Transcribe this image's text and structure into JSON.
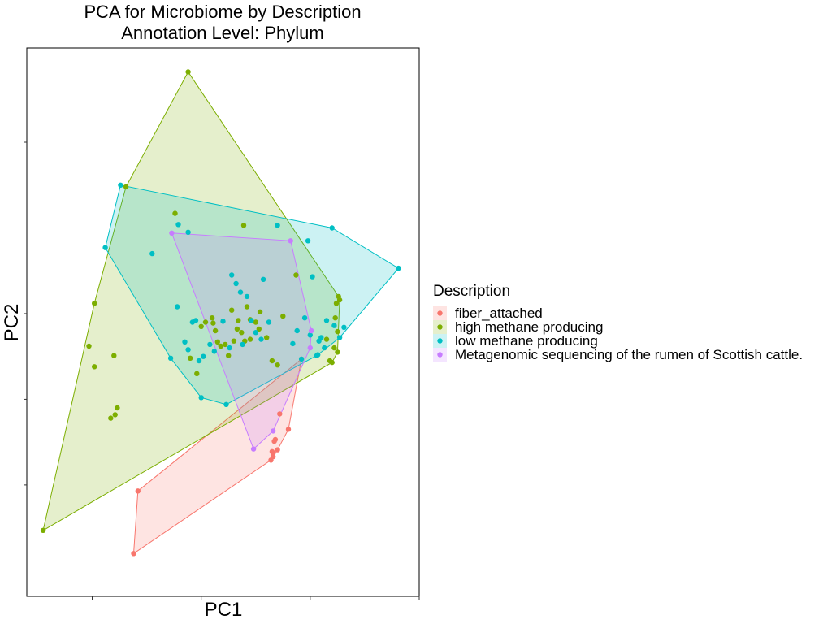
{
  "chart_data": {
    "type": "scatter",
    "title": "PCA for Microbiome by Description",
    "subtitle": "Annotation Level: Phylum",
    "xlabel": "PC1",
    "ylabel": "PC2",
    "xlim": [
      -0.1,
      3.5
    ],
    "ylim": [
      -3.3,
      3.1
    ],
    "grid": false,
    "legend": {
      "title": "Description",
      "position": "right"
    },
    "series": [
      {
        "name": "fiber_attached",
        "color": "#F8766D",
        "hull": true,
        "points": [
          [
            0.88,
            -2.8
          ],
          [
            0.92,
            -2.07
          ],
          [
            2.3,
            -1.35
          ],
          [
            2.42,
            -0.53
          ],
          [
            2.22,
            -1.17
          ],
          [
            2.18,
            -1.47
          ],
          [
            2.17,
            -1.49
          ],
          [
            2.2,
            -1.59
          ],
          [
            2.15,
            -1.61
          ],
          [
            2.16,
            -1.63
          ],
          [
            2.16,
            -1.67
          ],
          [
            2.14,
            -1.71
          ]
        ]
      },
      {
        "name": "high methane producing",
        "color": "#7CAE00",
        "hull": true,
        "points": [
          [
            0.05,
            -2.53
          ],
          [
            1.38,
            2.82
          ],
          [
            2.77,
            0.16
          ],
          [
            0.81,
            1.48
          ],
          [
            1.26,
            1.17
          ],
          [
            1.89,
            1.03
          ],
          [
            2.25,
            -0.03
          ],
          [
            0.7,
            -0.49
          ],
          [
            0.73,
            -1.1
          ],
          [
            0.71,
            -1.18
          ],
          [
            0.67,
            -1.22
          ],
          [
            0.52,
            -0.62
          ],
          [
            0.52,
            0.12
          ],
          [
            0.47,
            -0.38
          ],
          [
            1.54,
            -0.1
          ],
          [
            1.6,
            -0.05
          ],
          [
            1.61,
            -0.11
          ],
          [
            1.63,
            -0.2
          ],
          [
            1.65,
            -0.33
          ],
          [
            1.68,
            -0.38
          ],
          [
            1.72,
            -0.36
          ],
          [
            1.75,
            -0.49
          ],
          [
            1.8,
            -0.32
          ],
          [
            1.83,
            -0.18
          ],
          [
            1.87,
            -0.22
          ],
          [
            1.9,
            -0.32
          ],
          [
            1.92,
            0.08
          ],
          [
            1.95,
            -0.07
          ],
          [
            2.0,
            -0.1
          ],
          [
            2.03,
            -0.18
          ],
          [
            2.1,
            -0.28
          ],
          [
            2.15,
            -0.55
          ],
          [
            2.2,
            -0.6
          ],
          [
            1.5,
            -0.15
          ],
          [
            1.4,
            -0.52
          ],
          [
            1.46,
            -0.7
          ],
          [
            2.37,
            0.45
          ],
          [
            2.65,
            -0.3
          ],
          [
            2.7,
            -0.57
          ],
          [
            2.72,
            -0.4
          ],
          [
            2.73,
            -0.05
          ],
          [
            2.74,
            0.12
          ],
          [
            2.75,
            -0.21
          ],
          [
            2.76,
            0.2
          ],
          [
            2.75,
            -0.45
          ],
          [
            2.68,
            -0.55
          ],
          [
            1.78,
            0.04
          ],
          [
            1.84,
            -0.08
          ],
          [
            1.95,
            -0.3
          ],
          [
            2.04,
            0.02
          ]
        ]
      },
      {
        "name": "low methane producing",
        "color": "#00BFC4",
        "hull": true,
        "points": [
          [
            0.76,
            1.5
          ],
          [
            0.62,
            0.77
          ],
          [
            1.5,
            -0.98
          ],
          [
            1.73,
            -1.06
          ],
          [
            2.42,
            -0.53
          ],
          [
            2.57,
            -0.48
          ],
          [
            3.31,
            0.53
          ],
          [
            2.77,
            -0.28
          ],
          [
            2.7,
            1.0
          ],
          [
            2.2,
            1.03
          ],
          [
            1.29,
            1.04
          ],
          [
            1.38,
            0.95
          ],
          [
            1.05,
            0.7
          ],
          [
            1.28,
            0.08
          ],
          [
            1.42,
            -0.1
          ],
          [
            1.22,
            -0.52
          ],
          [
            1.35,
            -0.33
          ],
          [
            1.38,
            -0.42
          ],
          [
            1.45,
            -0.08
          ],
          [
            1.48,
            -0.55
          ],
          [
            1.62,
            -0.44
          ],
          [
            1.78,
            0.45
          ],
          [
            1.82,
            0.35
          ],
          [
            1.86,
            0.25
          ],
          [
            1.92,
            0.2
          ],
          [
            2.07,
            0.4
          ],
          [
            2.0,
            -0.22
          ],
          [
            2.05,
            -0.3
          ],
          [
            2.38,
            -0.2
          ],
          [
            2.45,
            -0.05
          ],
          [
            2.5,
            -0.25
          ],
          [
            2.58,
            -0.32
          ],
          [
            2.6,
            -0.28
          ],
          [
            2.65,
            -0.08
          ],
          [
            2.72,
            -0.14
          ],
          [
            2.48,
            0.85
          ],
          [
            2.52,
            0.43
          ],
          [
            1.52,
            -0.5
          ],
          [
            1.58,
            -0.36
          ],
          [
            1.7,
            -0.09
          ],
          [
            1.76,
            -0.4
          ],
          [
            1.88,
            -0.36
          ],
          [
            1.96,
            -0.08
          ],
          [
            2.12,
            -0.1
          ],
          [
            2.34,
            -0.35
          ],
          [
            2.56,
            -0.49
          ],
          [
            2.63,
            -0.4
          ],
          [
            2.81,
            -0.16
          ]
        ]
      },
      {
        "name": "Metagenomic sequencing of the rumen of Scottish cattle.",
        "color": "#C77CFF",
        "hull": true,
        "points": [
          [
            1.23,
            0.94
          ],
          [
            2.32,
            0.85
          ],
          [
            2.51,
            -0.2
          ],
          [
            2.5,
            -0.4
          ],
          [
            2.16,
            -1.37
          ],
          [
            1.98,
            -1.58
          ]
        ]
      }
    ]
  }
}
